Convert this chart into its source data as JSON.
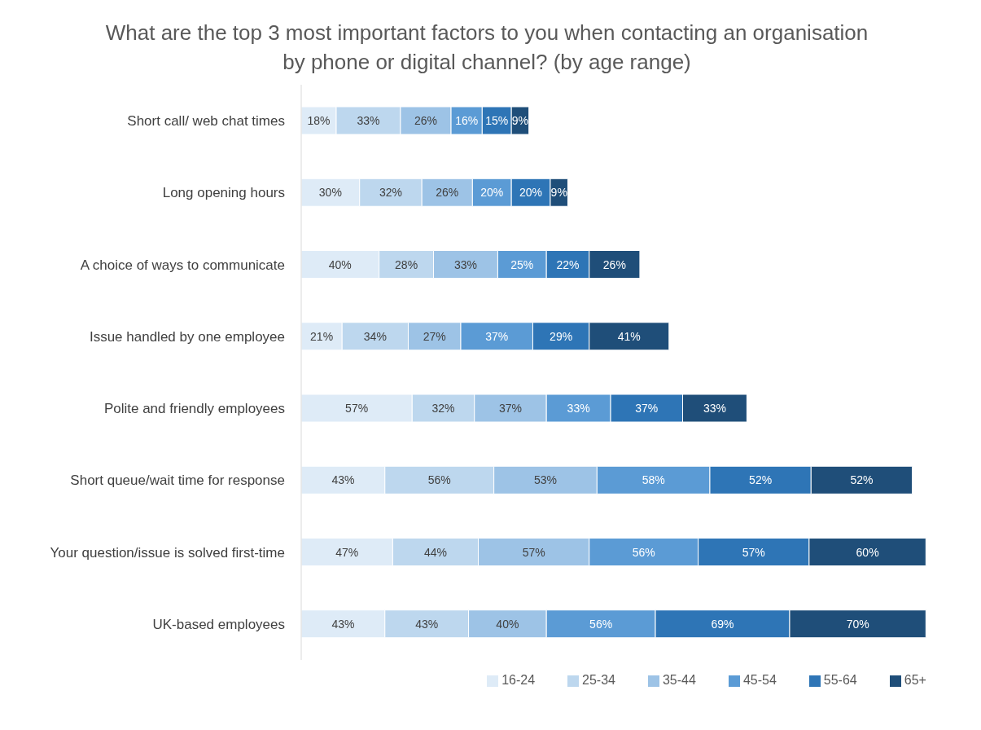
{
  "chart_data": {
    "type": "bar",
    "orientation": "horizontal",
    "stacked": true,
    "title": "What are the top 3 most important factors to you when contacting an organisation by phone or digital channel? (by age range)",
    "categories": [
      "Short call/ web chat times",
      "Long opening hours",
      "A choice of ways to communicate",
      "Issue handled by one employee",
      "Polite and friendly employees",
      "Short queue/wait time for response",
      "Your question/issue is solved first-time",
      "UK-based employees"
    ],
    "series": [
      {
        "name": "16-24",
        "color": "#deebf7",
        "values": [
          18,
          30,
          40,
          21,
          57,
          43,
          47,
          43
        ],
        "value_labels": [
          "18%",
          "30%",
          "40%",
          "21%",
          "57%",
          "43%",
          "47%",
          "43%"
        ]
      },
      {
        "name": "25-34",
        "color": "#bdd7ee",
        "values": [
          33,
          32,
          28,
          34,
          32,
          56,
          44,
          43
        ],
        "value_labels": [
          "33%",
          "32%",
          "28%",
          "34%",
          "32%",
          "56%",
          "44%",
          "43%"
        ]
      },
      {
        "name": "35-44",
        "color": "#9dc3e6",
        "values": [
          26,
          26,
          33,
          27,
          37,
          53,
          57,
          40
        ],
        "value_labels": [
          "26%",
          "26%",
          "33%",
          "27%",
          "37%",
          "53%",
          "57%",
          "40%"
        ]
      },
      {
        "name": "45-54",
        "color": "#5b9bd5",
        "values": [
          16,
          20,
          25,
          37,
          33,
          58,
          56,
          56
        ],
        "value_labels": [
          "16%",
          "20%",
          "25%",
          "37%",
          "33%",
          "58%",
          "56%",
          "56%"
        ]
      },
      {
        "name": "55-64",
        "color": "#2e75b6",
        "values": [
          15,
          20,
          22,
          29,
          37,
          52,
          57,
          69
        ],
        "value_labels": [
          "15%",
          "20%",
          "22%",
          "29%",
          "37%",
          "52%",
          "57%",
          "69%"
        ]
      },
      {
        "name": "65+",
        "color": "#1f4e79",
        "values": [
          9,
          9,
          26,
          41,
          33,
          52,
          60,
          70
        ],
        "value_labels": [
          "9%",
          "9%",
          "26%",
          "41%",
          "33%",
          "52%",
          "60%",
          "70%"
        ]
      }
    ],
    "legend": "bottom"
  }
}
